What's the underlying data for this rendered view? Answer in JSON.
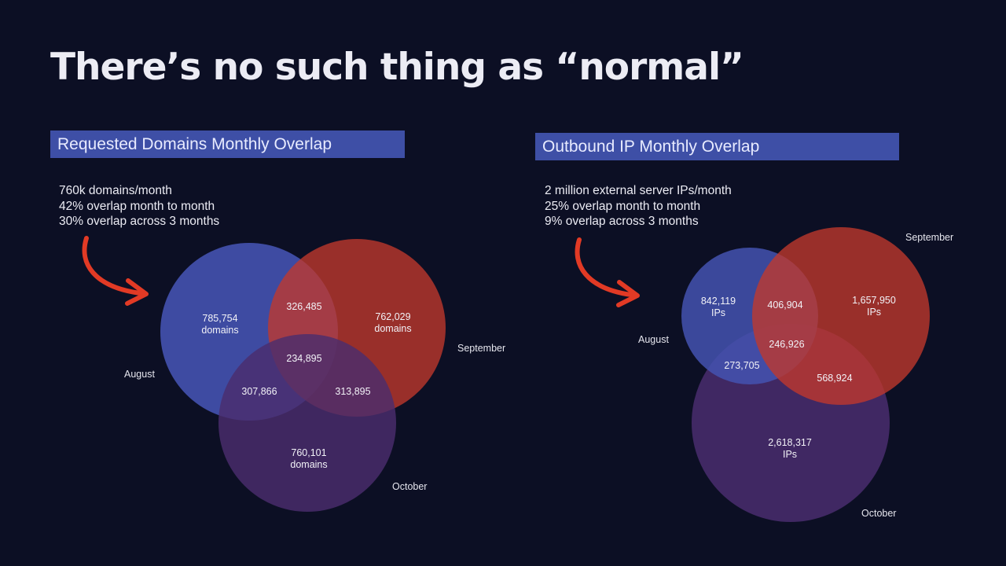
{
  "slide": {
    "title": "There’s no such thing as “normal”"
  },
  "left": {
    "header": "Requested Domains Monthly Overlap",
    "stats": [
      "760k domains/month",
      "42% overlap month to month",
      "30% overlap across 3 months"
    ],
    "months": {
      "august": "August",
      "september": "September",
      "october": "October"
    },
    "regions": {
      "august_only": [
        "785,754",
        "domains"
      ],
      "september_only": [
        "762,029",
        "domains"
      ],
      "october_only": [
        "760,101",
        "domains"
      ],
      "aug_sep": "326,485",
      "aug_oct": "307,866",
      "sep_oct": "313,895",
      "all_three": "234,895"
    }
  },
  "right": {
    "header": "Outbound IP Monthly Overlap",
    "stats": [
      "2 million external server IPs/month",
      "25% overlap month to month",
      "9% overlap across 3 months"
    ],
    "months": {
      "august": "August",
      "september": "September",
      "october": "October"
    },
    "regions": {
      "august_only": [
        "842,119",
        "IPs"
      ],
      "september_only": [
        "1,657,950",
        "IPs"
      ],
      "october_only": [
        "2,618,317",
        "IPs"
      ],
      "aug_sep": "406,904",
      "aug_oct": "273,705",
      "sep_oct": "568,924",
      "all_three": "246,926"
    }
  },
  "colors": {
    "background": "#0c0f24",
    "header_bg": "#3e4fa6",
    "august": "#4452b0",
    "september": "#c2392c",
    "october": "#4a2d6e",
    "arrow": "#e23a25"
  }
}
